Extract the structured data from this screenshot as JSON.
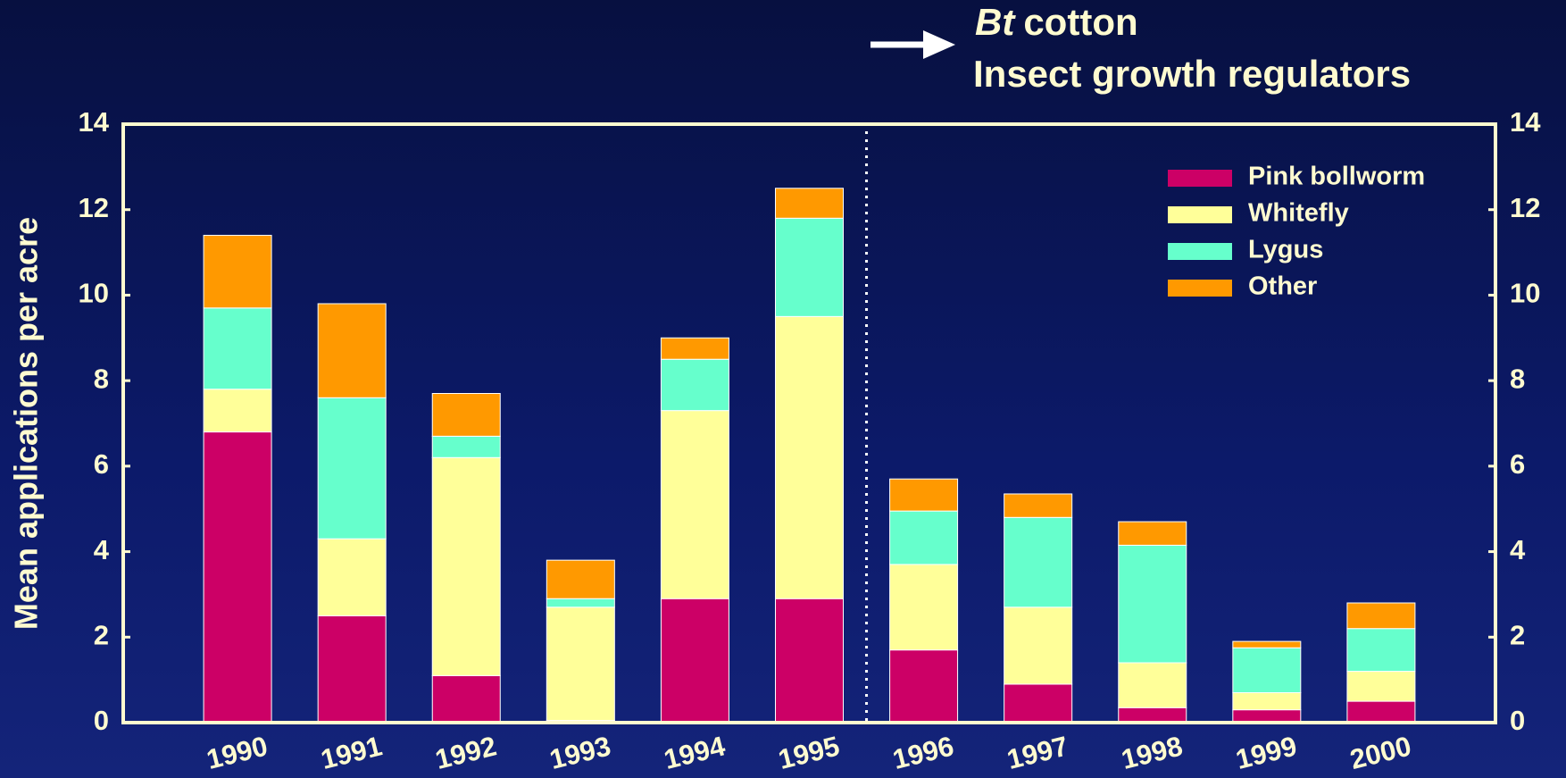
{
  "chart_data": {
    "type": "bar",
    "stacked": true,
    "annotations": [
      "Bt",
      "cotton",
      "Insect growth regulators"
    ],
    "y_label": "Mean applications per acre",
    "categories": [
      "1990",
      "1991",
      "1992",
      "1993",
      "1994",
      "1995",
      "1996",
      "1997",
      "1998",
      "1999",
      "2000"
    ],
    "series": [
      {
        "name": "Pink bollworm",
        "color": "#cc0066",
        "values": [
          6.8,
          2.5,
          1.1,
          0.05,
          2.9,
          2.9,
          1.7,
          0.9,
          0.35,
          0.3,
          0.5
        ]
      },
      {
        "name": "Whitefly",
        "color": "#ffff99",
        "values": [
          1.0,
          1.8,
          5.1,
          2.65,
          4.4,
          6.6,
          2.0,
          1.8,
          1.05,
          0.4,
          0.7
        ]
      },
      {
        "name": "Lygus",
        "color": "#66ffcc",
        "values": [
          1.9,
          3.3,
          0.5,
          0.2,
          1.2,
          2.3,
          1.25,
          2.1,
          2.75,
          1.05,
          1.0
        ]
      },
      {
        "name": "Other",
        "color": "#ff9900",
        "values": [
          1.7,
          2.2,
          1.0,
          0.9,
          0.5,
          0.7,
          0.75,
          0.55,
          0.55,
          0.15,
          0.6
        ]
      }
    ],
    "ylim": [
      0,
      14
    ],
    "yticks": [
      0,
      2,
      4,
      6,
      8,
      10,
      12,
      14
    ],
    "legend": "upper right"
  }
}
